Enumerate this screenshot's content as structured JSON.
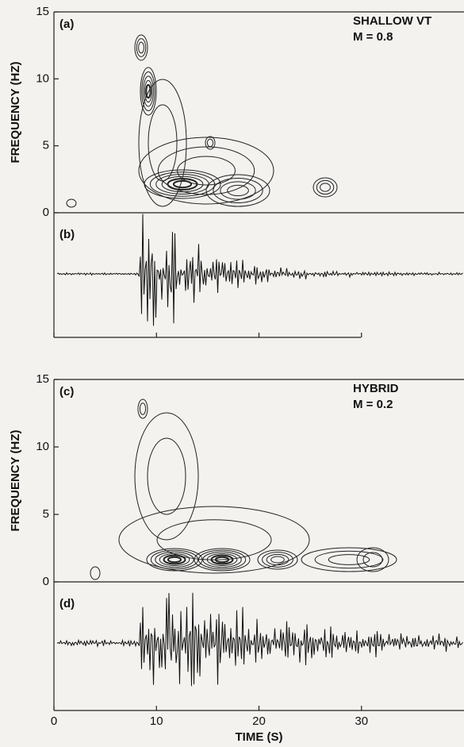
{
  "chart_data": [
    {
      "type": "contour",
      "panel_label": "(a)",
      "annotation": [
        "SHALLOW VT",
        "M = 0.8"
      ],
      "ylabel": "FREQUENCY (HZ)",
      "ylim": [
        0,
        15
      ],
      "yticks": [
        0,
        5,
        10,
        15
      ],
      "xlim": [
        0,
        40
      ]
    },
    {
      "type": "waveform",
      "panel_label": "(b)"
    },
    {
      "type": "contour",
      "panel_label": "(c)",
      "annotation": [
        "HYBRID",
        "M = 0.2"
      ],
      "ylabel": "FREQUENCY (HZ)",
      "ylim": [
        0,
        15
      ],
      "yticks": [
        0,
        5,
        10,
        15
      ],
      "xlim": [
        0,
        40
      ]
    },
    {
      "type": "waveform",
      "panel_label": "(d)",
      "xlabel": "TIME (S)",
      "xlim": [
        0,
        40
      ],
      "xticks": [
        0,
        10,
        20,
        30
      ]
    }
  ]
}
